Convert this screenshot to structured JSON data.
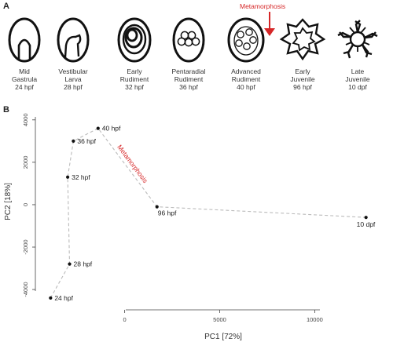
{
  "figure": {
    "panel_a_label": "A",
    "panel_b_label": "B",
    "metamorphosis_label": "Metamorphosis",
    "colors": {
      "accent_red": "#d62728",
      "ink": "#111111",
      "dashed_line": "#bbbbbb"
    }
  },
  "stages": [
    {
      "line1": "Mid",
      "line2": "Gastrula",
      "line3": "24 hpf",
      "icon": "gastrula-icon"
    },
    {
      "line1": "Vestibular",
      "line2": "Larva",
      "line3": "28 hpf",
      "icon": "vestibular-larva-icon"
    },
    {
      "line1": "Early",
      "line2": "Rudiment",
      "line3": "32 hpf",
      "icon": "early-rudiment-icon"
    },
    {
      "line1": "Pentaradial",
      "line2": "Rudiment",
      "line3": "36 hpf",
      "icon": "pentaradial-rudiment-icon"
    },
    {
      "line1": "Advanced",
      "line2": "Rudiment",
      "line3": "40 hpf",
      "icon": "advanced-rudiment-icon"
    },
    {
      "line1": "Early",
      "line2": "Juvenile",
      "line3": "96 hpf",
      "icon": "early-juvenile-icon"
    },
    {
      "line1": "Late",
      "line2": "Juvenile",
      "line3": "10 dpf",
      "icon": "late-juvenile-icon"
    }
  ],
  "chart_data": {
    "type": "scatter",
    "xlabel": "PC1 [72%]",
    "ylabel": "PC2 [18%]",
    "xlim": [
      -4700,
      13500
    ],
    "ylim": [
      -4700,
      4400
    ],
    "xticks": [
      0,
      5000,
      10000
    ],
    "yticks": [
      -4000,
      -2000,
      0,
      2000,
      4000
    ],
    "xtick_labels": [
      "0",
      "5000",
      "10000"
    ],
    "ytick_labels": [
      "-4000",
      "-2000",
      "0",
      "2000",
      "4000"
    ],
    "grid": false,
    "connected_path": "dashed",
    "points": [
      {
        "label": "24 hpf",
        "x": -3900,
        "y": -4400
      },
      {
        "label": "28 hpf",
        "x": -2900,
        "y": -2800
      },
      {
        "label": "32 hpf",
        "x": -3000,
        "y": 1300
      },
      {
        "label": "36 hpf",
        "x": -2700,
        "y": 3000
      },
      {
        "label": "40 hpf",
        "x": -1400,
        "y": 3600
      },
      {
        "label": "96 hpf",
        "x": 1700,
        "y": -100
      },
      {
        "label": "10 dpf",
        "x": 12700,
        "y": -600
      }
    ],
    "annotation": "Metamorphosis"
  }
}
